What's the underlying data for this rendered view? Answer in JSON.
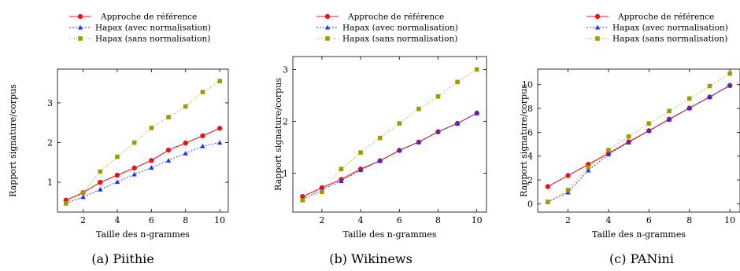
{
  "series_styles": [
    {
      "color": "#e8141c",
      "marker": "circle",
      "dash": ""
    },
    {
      "color": "#2233ee",
      "marker": "triangle",
      "dash": "2,2"
    },
    {
      "color": "#9e9a00",
      "marker": "square",
      "dash": "1,2"
    }
  ],
  "chart_data": [
    {
      "type": "line",
      "caption": "(a) Piithie",
      "xlabel": "Taille des n-grammes",
      "ylabel": "Rapport signature/corpus",
      "xlim": [
        0.5,
        10.5
      ],
      "ylim": [
        0.25,
        3.85
      ],
      "xticks": [
        2,
        4,
        6,
        8,
        10
      ],
      "yticks": [
        1,
        2,
        3
      ],
      "legend_position": "top",
      "x": [
        1,
        2,
        3,
        4,
        5,
        6,
        7,
        8,
        9,
        10
      ],
      "series": [
        {
          "name": "Approche de référence",
          "values": [
            0.55,
            0.74,
            1.0,
            1.18,
            1.36,
            1.55,
            1.81,
            1.99,
            2.17,
            2.36
          ]
        },
        {
          "name": "Hapax (avec normalisation)",
          "values": [
            0.47,
            0.63,
            0.82,
            1.01,
            1.2,
            1.37,
            1.55,
            1.73,
            1.91,
            2.0
          ]
        },
        {
          "name": "Hapax (sans normalisation)",
          "values": [
            0.47,
            0.74,
            1.27,
            1.64,
            2.0,
            2.37,
            2.64,
            2.91,
            3.27,
            3.55
          ]
        }
      ]
    },
    {
      "type": "line",
      "caption": "(b) Wikinews",
      "xlabel": "Taille des n-grammes",
      "ylabel": "Rapport signature/corpus",
      "xlim": [
        0.5,
        10.5
      ],
      "ylim": [
        0.25,
        3.25
      ],
      "xticks": [
        2,
        4,
        6,
        8,
        10
      ],
      "yticks": [
        1,
        2,
        3
      ],
      "legend_position": "top",
      "x": [
        1,
        2,
        3,
        4,
        5,
        6,
        7,
        8,
        9,
        10
      ],
      "series": [
        {
          "name": "Approche de référence",
          "values": [
            0.55,
            0.72,
            0.88,
            1.08,
            1.24,
            1.44,
            1.6,
            1.8,
            1.96,
            2.16
          ]
        },
        {
          "name": "Hapax (avec normalisation)",
          "values": [
            0.5,
            0.68,
            0.85,
            1.06,
            1.24,
            1.44,
            1.6,
            1.8,
            1.96,
            2.16
          ]
        },
        {
          "name": "Hapax (sans normalisation)",
          "values": [
            0.48,
            0.64,
            1.08,
            1.4,
            1.68,
            1.96,
            2.24,
            2.48,
            2.76,
            3.0
          ]
        }
      ]
    },
    {
      "type": "line",
      "caption": "(c) PANini",
      "xlabel": "Taille des n-grammes",
      "ylabel": "Rapport signature/corpus",
      "xlim": [
        0.5,
        10.5
      ],
      "ylim": [
        -0.7,
        11.3
      ],
      "xticks": [
        2,
        4,
        6,
        8,
        10
      ],
      "yticks": [
        0,
        2,
        4,
        6,
        8,
        10
      ],
      "legend_position": "top",
      "x": [
        1,
        2,
        3,
        4,
        5,
        6,
        7,
        8,
        9,
        10
      ],
      "series": [
        {
          "name": "Approche de référence",
          "values": [
            1.44,
            2.37,
            3.3,
            4.23,
            5.2,
            6.13,
            7.1,
            8.03,
            8.96,
            9.93
          ]
        },
        {
          "name": "Hapax (avec normalisation)",
          "values": [
            0.15,
            0.95,
            2.8,
            4.15,
            5.15,
            6.13,
            7.06,
            8.03,
            8.96,
            9.93
          ]
        },
        {
          "name": "Hapax (sans normalisation)",
          "values": [
            0.15,
            1.15,
            3.05,
            4.5,
            5.65,
            6.73,
            7.78,
            8.83,
            9.88,
            10.93
          ]
        }
      ]
    }
  ]
}
